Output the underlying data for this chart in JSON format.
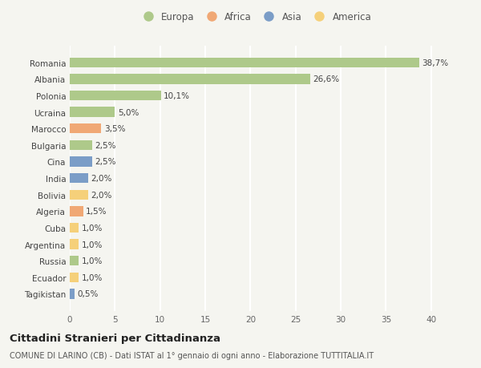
{
  "countries": [
    "Romania",
    "Albania",
    "Polonia",
    "Ucraina",
    "Marocco",
    "Bulgaria",
    "Cina",
    "India",
    "Bolivia",
    "Algeria",
    "Cuba",
    "Argentina",
    "Russia",
    "Ecuador",
    "Tagikistan"
  ],
  "values": [
    38.7,
    26.6,
    10.1,
    5.0,
    3.5,
    2.5,
    2.5,
    2.0,
    2.0,
    1.5,
    1.0,
    1.0,
    1.0,
    1.0,
    0.5
  ],
  "labels": [
    "38,7%",
    "26,6%",
    "10,1%",
    "5,0%",
    "3,5%",
    "2,5%",
    "2,5%",
    "2,0%",
    "2,0%",
    "1,5%",
    "1,0%",
    "1,0%",
    "1,0%",
    "1,0%",
    "0,5%"
  ],
  "colors": [
    "#aec98a",
    "#aec98a",
    "#aec98a",
    "#aec98a",
    "#f0a875",
    "#aec98a",
    "#7b9dc7",
    "#7b9dc7",
    "#f5d07a",
    "#f0a875",
    "#f5d07a",
    "#f5d07a",
    "#aec98a",
    "#f5d07a",
    "#7b9dc7"
  ],
  "legend_names": [
    "Europa",
    "Africa",
    "Asia",
    "America"
  ],
  "legend_colors": [
    "#aec98a",
    "#f0a875",
    "#7b9dc7",
    "#f5d07a"
  ],
  "xlim": [
    0,
    41
  ],
  "xticks": [
    0,
    5,
    10,
    15,
    20,
    25,
    30,
    35,
    40
  ],
  "title": "Cittadini Stranieri per Cittadinanza",
  "subtitle": "COMUNE DI LARINO (CB) - Dati ISTAT al 1° gennaio di ogni anno - Elaborazione TUTTITALIA.IT",
  "background_color": "#f5f5f0",
  "grid_color": "#ffffff",
  "bar_height": 0.6
}
